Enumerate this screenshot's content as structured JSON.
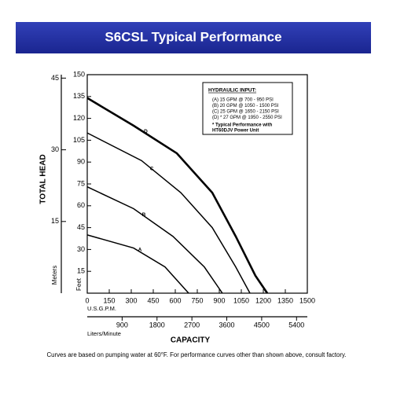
{
  "chart_data": {
    "type": "line",
    "title": "S6CSL Typical Performance",
    "x_label": "CAPACITY",
    "x_units_label": "U.S.G.P.M.",
    "y_label": "TOTAL HEAD",
    "y_units_label": "Feet",
    "xlim": [
      0,
      1500
    ],
    "xticks": [
      0,
      150,
      300,
      450,
      600,
      750,
      900,
      1050,
      1200,
      1350,
      1500
    ],
    "ylim": [
      0,
      150
    ],
    "yticks": [
      15,
      30,
      45,
      60,
      75,
      90,
      105,
      120,
      135,
      150
    ],
    "x2_label": "Liters/Minute",
    "x2lim": [
      0,
      5678
    ],
    "x2ticks": [
      900,
      1800,
      2700,
      3600,
      4500,
      5400
    ],
    "y2_label": "Meters",
    "y2lim": [
      0,
      45.72
    ],
    "y2ticks": [
      15,
      30,
      45
    ],
    "grid": false,
    "series": [
      {
        "name": "A",
        "color": "#000000",
        "width": 1.5,
        "x": [
          0,
          316,
          530,
          691
        ],
        "values": [
          40,
          31,
          18,
          0
        ]
      },
      {
        "name": "B",
        "color": "#000000",
        "width": 1.5,
        "x": [
          0,
          316,
          584,
          798,
          921
        ],
        "values": [
          73,
          58,
          39,
          18,
          0
        ]
      },
      {
        "name": "C",
        "color": "#000000",
        "width": 1.5,
        "x": [
          0,
          370,
          638,
          852,
          1012,
          1109
        ],
        "values": [
          110,
          91,
          69,
          45,
          18,
          0
        ]
      },
      {
        "name": "D",
        "color": "#000000",
        "width": 2.6,
        "x": [
          0,
          316,
          611,
          852,
          1012,
          1146,
          1227
        ],
        "values": [
          134,
          115,
          96,
          69,
          39,
          12,
          0
        ]
      }
    ],
    "annotation": {
      "heading": "HYDRAULIC INPUT:",
      "lines": [
        "(A) 15 GPM @ 700 - 950 PSI",
        "(B) 20 GPM @ 1050 - 1500 PSI",
        "(C) 25 GPM @ 1650 - 2150 PSI",
        "(D) * 27 GPM @ 1950 - 2550 PSI"
      ],
      "note": [
        "* Typical Performance with",
        "HT60DJV Power Unit"
      ]
    },
    "footnote": "Curves are based on pumping water at 60°F. For performance curves other than shown above, consult factory."
  }
}
